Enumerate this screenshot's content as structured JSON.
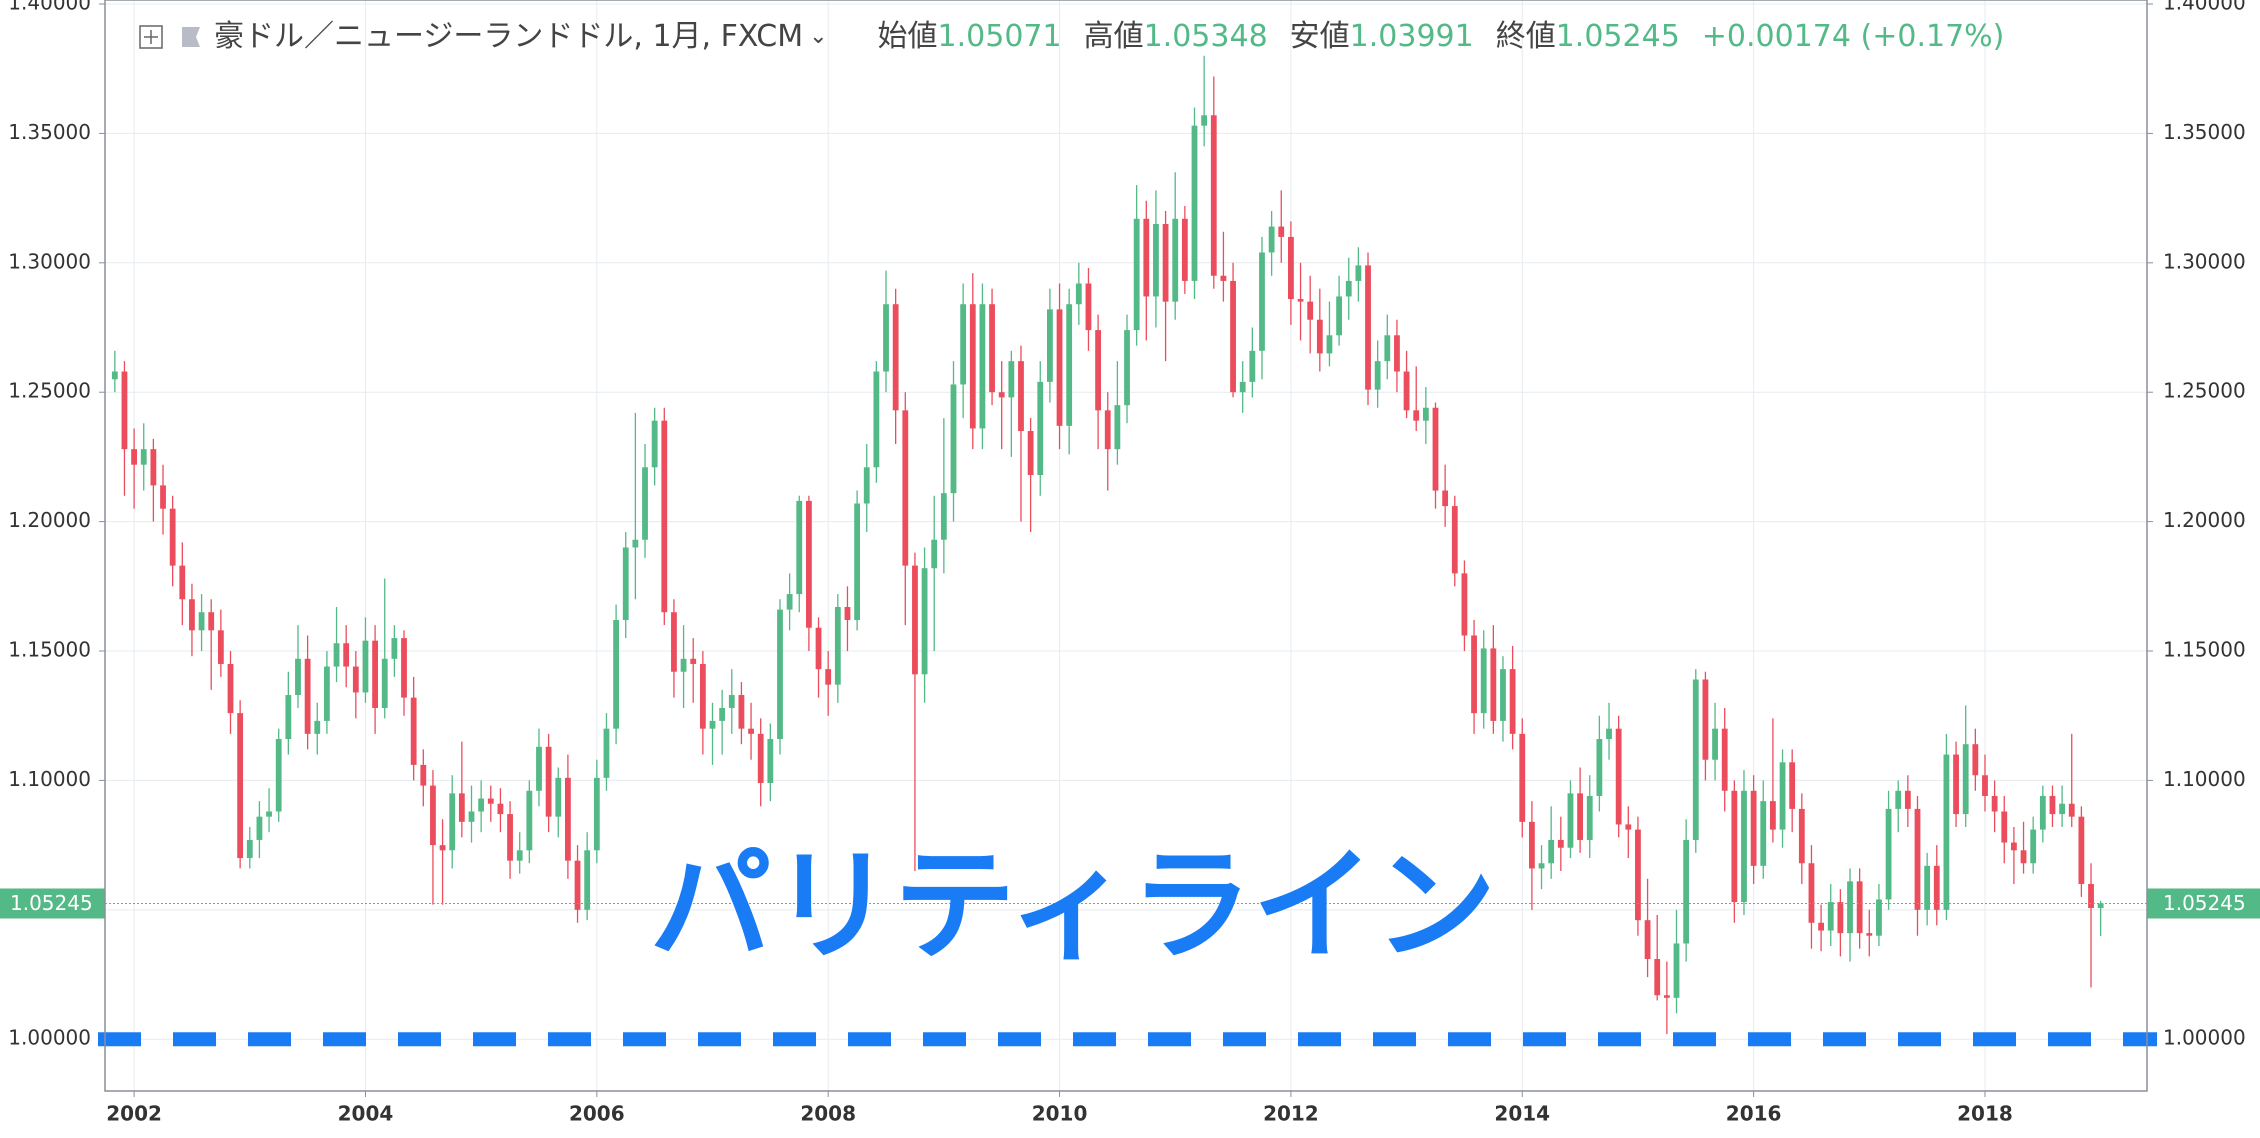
{
  "chart_data": {
    "type": "candlestick",
    "title": "豪ドル／ニュージーランドドル, 1月, FXCM",
    "ohlc_labels": [
      "始値",
      "高値",
      "安値",
      "終値"
    ],
    "change": "+0.00174 (+0.17%)",
    "up_color": "#53b987",
    "down_color": "#eb4d5c",
    "grid": true,
    "ylim": [
      0.98,
      1.4
    ],
    "yticks": [
      {
        "value": 1.0,
        "label": "1.00000"
      },
      {
        "value": 1.05,
        "label": "1.05000"
      },
      {
        "value": 1.1,
        "label": "1.10000"
      },
      {
        "value": 1.15,
        "label": "1.15000"
      },
      {
        "value": 1.2,
        "label": "1.20000"
      },
      {
        "value": 1.25,
        "label": "1.25000"
      },
      {
        "value": 1.3,
        "label": "1.30000"
      },
      {
        "value": 1.35,
        "label": "1.35000"
      },
      {
        "value": 1.4,
        "label": "1.40000"
      }
    ],
    "hline": {
      "value": 1,
      "label": "パリティライン",
      "color": "#1a7cf5"
    },
    "categories": [
      null,
      null,
      "2002",
      null,
      null,
      null,
      null,
      null,
      null,
      null,
      null,
      null,
      null,
      null,
      null,
      null,
      null,
      null,
      null,
      null,
      null,
      null,
      null,
      null,
      null,
      null,
      "2004",
      null,
      null,
      null,
      null,
      null,
      null,
      null,
      null,
      null,
      null,
      null,
      null,
      null,
      null,
      null,
      null,
      null,
      null,
      null,
      null,
      null,
      null,
      null,
      "2006",
      null,
      null,
      null,
      null,
      null,
      null,
      null,
      null,
      null,
      null,
      null,
      null,
      null,
      null,
      null,
      null,
      null,
      null,
      null,
      null,
      null,
      null,
      null,
      "2008",
      null,
      null,
      null,
      null,
      null,
      null,
      null,
      null,
      null,
      null,
      null,
      null,
      null,
      null,
      null,
      null,
      null,
      null,
      null,
      null,
      null,
      null,
      null,
      "2010",
      null,
      null,
      null,
      null,
      null,
      null,
      null,
      null,
      null,
      null,
      null,
      null,
      null,
      null,
      null,
      null,
      null,
      null,
      null,
      null,
      null,
      null,
      null,
      "2012",
      null,
      null,
      null,
      null,
      null,
      null,
      null,
      null,
      null,
      null,
      null,
      null,
      null,
      null,
      null,
      null,
      null,
      null,
      null,
      null,
      null,
      null,
      null,
      "2014",
      null,
      null,
      null,
      null,
      null,
      null,
      null,
      null,
      null,
      null,
      null,
      null,
      null,
      null,
      null,
      null,
      null,
      null,
      null,
      null,
      null,
      null,
      null,
      "2016",
      null,
      null,
      null,
      null,
      null,
      null,
      null,
      null,
      null,
      null,
      null,
      null,
      null,
      null,
      null,
      null,
      null,
      null,
      null,
      null,
      null,
      null,
      null,
      "2018",
      null,
      null,
      null,
      null,
      null,
      null,
      null,
      null,
      null,
      null,
      null,
      null
    ],
    "ohlc": [
      [
        1.255,
        1.266,
        1.25,
        1.258
      ],
      [
        1.258,
        1.262,
        1.21,
        1.228
      ],
      [
        1.228,
        1.236,
        1.205,
        1.222
      ],
      [
        1.222,
        1.238,
        1.212,
        1.228
      ],
      [
        1.228,
        1.232,
        1.2,
        1.214
      ],
      [
        1.214,
        1.222,
        1.195,
        1.205
      ],
      [
        1.205,
        1.21,
        1.175,
        1.183
      ],
      [
        1.183,
        1.192,
        1.16,
        1.17
      ],
      [
        1.17,
        1.176,
        1.148,
        1.158
      ],
      [
        1.158,
        1.172,
        1.15,
        1.165
      ],
      [
        1.165,
        1.17,
        1.135,
        1.158
      ],
      [
        1.158,
        1.166,
        1.14,
        1.145
      ],
      [
        1.145,
        1.15,
        1.118,
        1.126
      ],
      [
        1.126,
        1.131,
        1.066,
        1.07
      ],
      [
        1.07,
        1.082,
        1.066,
        1.077
      ],
      [
        1.077,
        1.092,
        1.07,
        1.086
      ],
      [
        1.086,
        1.097,
        1.08,
        1.088
      ],
      [
        1.088,
        1.12,
        1.084,
        1.116
      ],
      [
        1.116,
        1.142,
        1.11,
        1.133
      ],
      [
        1.133,
        1.16,
        1.128,
        1.147
      ],
      [
        1.147,
        1.156,
        1.112,
        1.118
      ],
      [
        1.118,
        1.13,
        1.11,
        1.123
      ],
      [
        1.123,
        1.15,
        1.118,
        1.144
      ],
      [
        1.144,
        1.167,
        1.138,
        1.153
      ],
      [
        1.153,
        1.16,
        1.136,
        1.144
      ],
      [
        1.144,
        1.15,
        1.124,
        1.134
      ],
      [
        1.134,
        1.163,
        1.13,
        1.154
      ],
      [
        1.154,
        1.16,
        1.118,
        1.128
      ],
      [
        1.128,
        1.178,
        1.124,
        1.147
      ],
      [
        1.147,
        1.16,
        1.14,
        1.155
      ],
      [
        1.155,
        1.158,
        1.125,
        1.132
      ],
      [
        1.132,
        1.14,
        1.1,
        1.106
      ],
      [
        1.106,
        1.112,
        1.09,
        1.098
      ],
      [
        1.098,
        1.104,
        1.052,
        1.075
      ],
      [
        1.075,
        1.085,
        1.052,
        1.073
      ],
      [
        1.073,
        1.102,
        1.066,
        1.095
      ],
      [
        1.095,
        1.115,
        1.078,
        1.084
      ],
      [
        1.084,
        1.098,
        1.076,
        1.088
      ],
      [
        1.088,
        1.1,
        1.08,
        1.093
      ],
      [
        1.093,
        1.098,
        1.084,
        1.091
      ],
      [
        1.091,
        1.097,
        1.08,
        1.087
      ],
      [
        1.087,
        1.092,
        1.062,
        1.069
      ],
      [
        1.069,
        1.08,
        1.064,
        1.073
      ],
      [
        1.073,
        1.1,
        1.068,
        1.096
      ],
      [
        1.096,
        1.12,
        1.09,
        1.113
      ],
      [
        1.113,
        1.118,
        1.08,
        1.086
      ],
      [
        1.086,
        1.105,
        1.078,
        1.101
      ],
      [
        1.101,
        1.11,
        1.062,
        1.069
      ],
      [
        1.069,
        1.075,
        1.045,
        1.05
      ],
      [
        1.05,
        1.08,
        1.046,
        1.073
      ],
      [
        1.073,
        1.108,
        1.068,
        1.101
      ],
      [
        1.101,
        1.126,
        1.096,
        1.12
      ],
      [
        1.12,
        1.168,
        1.114,
        1.162
      ],
      [
        1.162,
        1.196,
        1.155,
        1.19
      ],
      [
        1.19,
        1.242,
        1.17,
        1.193
      ],
      [
        1.193,
        1.23,
        1.186,
        1.221
      ],
      [
        1.221,
        1.244,
        1.214,
        1.239
      ],
      [
        1.239,
        1.244,
        1.16,
        1.165
      ],
      [
        1.165,
        1.17,
        1.132,
        1.142
      ],
      [
        1.142,
        1.16,
        1.128,
        1.147
      ],
      [
        1.147,
        1.155,
        1.13,
        1.145
      ],
      [
        1.145,
        1.15,
        1.11,
        1.12
      ],
      [
        1.12,
        1.13,
        1.106,
        1.123
      ],
      [
        1.123,
        1.135,
        1.11,
        1.128
      ],
      [
        1.128,
        1.143,
        1.118,
        1.133
      ],
      [
        1.133,
        1.138,
        1.114,
        1.12
      ],
      [
        1.12,
        1.13,
        1.108,
        1.118
      ],
      [
        1.118,
        1.124,
        1.09,
        1.099
      ],
      [
        1.099,
        1.122,
        1.092,
        1.116
      ],
      [
        1.116,
        1.17,
        1.11,
        1.166
      ],
      [
        1.166,
        1.18,
        1.158,
        1.172
      ],
      [
        1.172,
        1.21,
        1.165,
        1.208
      ],
      [
        1.208,
        1.21,
        1.15,
        1.159
      ],
      [
        1.159,
        1.163,
        1.132,
        1.143
      ],
      [
        1.143,
        1.15,
        1.125,
        1.137
      ],
      [
        1.137,
        1.172,
        1.13,
        1.167
      ],
      [
        1.167,
        1.175,
        1.15,
        1.162
      ],
      [
        1.162,
        1.212,
        1.158,
        1.207
      ],
      [
        1.207,
        1.23,
        1.196,
        1.221
      ],
      [
        1.221,
        1.262,
        1.215,
        1.258
      ],
      [
        1.258,
        1.297,
        1.25,
        1.284
      ],
      [
        1.284,
        1.29,
        1.23,
        1.243
      ],
      [
        1.243,
        1.25,
        1.16,
        1.183
      ],
      [
        1.183,
        1.188,
        1.065,
        1.141
      ],
      [
        1.141,
        1.19,
        1.13,
        1.182
      ],
      [
        1.182,
        1.21,
        1.15,
        1.193
      ],
      [
        1.193,
        1.24,
        1.18,
        1.211
      ],
      [
        1.211,
        1.262,
        1.2,
        1.253
      ],
      [
        1.253,
        1.292,
        1.24,
        1.284
      ],
      [
        1.284,
        1.296,
        1.228,
        1.236
      ],
      [
        1.236,
        1.292,
        1.228,
        1.284
      ],
      [
        1.284,
        1.29,
        1.245,
        1.25
      ],
      [
        1.25,
        1.262,
        1.228,
        1.248
      ],
      [
        1.248,
        1.266,
        1.225,
        1.262
      ],
      [
        1.262,
        1.268,
        1.2,
        1.235
      ],
      [
        1.235,
        1.24,
        1.196,
        1.218
      ],
      [
        1.218,
        1.262,
        1.21,
        1.254
      ],
      [
        1.254,
        1.29,
        1.246,
        1.282
      ],
      [
        1.282,
        1.292,
        1.228,
        1.237
      ],
      [
        1.237,
        1.29,
        1.226,
        1.284
      ],
      [
        1.284,
        1.3,
        1.276,
        1.292
      ],
      [
        1.292,
        1.298,
        1.266,
        1.274
      ],
      [
        1.274,
        1.28,
        1.228,
        1.243
      ],
      [
        1.243,
        1.25,
        1.212,
        1.228
      ],
      [
        1.228,
        1.262,
        1.222,
        1.245
      ],
      [
        1.245,
        1.28,
        1.238,
        1.274
      ],
      [
        1.274,
        1.33,
        1.268,
        1.317
      ],
      [
        1.317,
        1.324,
        1.27,
        1.287
      ],
      [
        1.287,
        1.328,
        1.275,
        1.315
      ],
      [
        1.315,
        1.32,
        1.262,
        1.285
      ],
      [
        1.285,
        1.335,
        1.278,
        1.317
      ],
      [
        1.317,
        1.322,
        1.288,
        1.293
      ],
      [
        1.293,
        1.36,
        1.286,
        1.353
      ],
      [
        1.353,
        1.38,
        1.345,
        1.357
      ],
      [
        1.357,
        1.372,
        1.29,
        1.295
      ],
      [
        1.295,
        1.312,
        1.285,
        1.293
      ],
      [
        1.293,
        1.3,
        1.248,
        1.25
      ],
      [
        1.25,
        1.262,
        1.242,
        1.254
      ],
      [
        1.254,
        1.275,
        1.248,
        1.266
      ],
      [
        1.266,
        1.31,
        1.255,
        1.304
      ],
      [
        1.304,
        1.32,
        1.295,
        1.314
      ],
      [
        1.314,
        1.328,
        1.3,
        1.31
      ],
      [
        1.31,
        1.316,
        1.276,
        1.286
      ],
      [
        1.286,
        1.3,
        1.27,
        1.285
      ],
      [
        1.285,
        1.295,
        1.265,
        1.278
      ],
      [
        1.278,
        1.29,
        1.258,
        1.265
      ],
      [
        1.265,
        1.285,
        1.26,
        1.272
      ],
      [
        1.272,
        1.295,
        1.268,
        1.287
      ],
      [
        1.287,
        1.302,
        1.278,
        1.293
      ],
      [
        1.293,
        1.306,
        1.285,
        1.299
      ],
      [
        1.299,
        1.304,
        1.245,
        1.251
      ],
      [
        1.251,
        1.27,
        1.244,
        1.262
      ],
      [
        1.262,
        1.28,
        1.255,
        1.272
      ],
      [
        1.272,
        1.278,
        1.25,
        1.258
      ],
      [
        1.258,
        1.266,
        1.24,
        1.243
      ],
      [
        1.243,
        1.26,
        1.235,
        1.239
      ],
      [
        1.239,
        1.252,
        1.23,
        1.244
      ],
      [
        1.244,
        1.246,
        1.205,
        1.212
      ],
      [
        1.212,
        1.222,
        1.198,
        1.206
      ],
      [
        1.206,
        1.21,
        1.175,
        1.18
      ],
      [
        1.18,
        1.185,
        1.15,
        1.156
      ],
      [
        1.156,
        1.162,
        1.118,
        1.126
      ],
      [
        1.126,
        1.158,
        1.12,
        1.151
      ],
      [
        1.151,
        1.16,
        1.118,
        1.123
      ],
      [
        1.123,
        1.148,
        1.115,
        1.143
      ],
      [
        1.143,
        1.152,
        1.112,
        1.118
      ],
      [
        1.118,
        1.124,
        1.078,
        1.084
      ],
      [
        1.084,
        1.092,
        1.05,
        1.066
      ],
      [
        1.066,
        1.075,
        1.058,
        1.068
      ],
      [
        1.068,
        1.09,
        1.062,
        1.077
      ],
      [
        1.077,
        1.086,
        1.065,
        1.074
      ],
      [
        1.074,
        1.1,
        1.07,
        1.095
      ],
      [
        1.095,
        1.105,
        1.072,
        1.077
      ],
      [
        1.077,
        1.102,
        1.07,
        1.094
      ],
      [
        1.094,
        1.125,
        1.088,
        1.116
      ],
      [
        1.116,
        1.13,
        1.108,
        1.12
      ],
      [
        1.12,
        1.125,
        1.078,
        1.083
      ],
      [
        1.083,
        1.09,
        1.07,
        1.081
      ],
      [
        1.081,
        1.086,
        1.04,
        1.046
      ],
      [
        1.046,
        1.062,
        1.024,
        1.031
      ],
      [
        1.031,
        1.048,
        1.015,
        1.017
      ],
      [
        1.017,
        1.03,
        1.002,
        1.016
      ],
      [
        1.016,
        1.05,
        1.01,
        1.037
      ],
      [
        1.037,
        1.085,
        1.03,
        1.077
      ],
      [
        1.077,
        1.143,
        1.072,
        1.139
      ],
      [
        1.139,
        1.142,
        1.1,
        1.108
      ],
      [
        1.108,
        1.13,
        1.1,
        1.12
      ],
      [
        1.12,
        1.128,
        1.088,
        1.096
      ],
      [
        1.096,
        1.1,
        1.045,
        1.053
      ],
      [
        1.053,
        1.104,
        1.048,
        1.096
      ],
      [
        1.096,
        1.102,
        1.06,
        1.067
      ],
      [
        1.067,
        1.1,
        1.062,
        1.092
      ],
      [
        1.092,
        1.124,
        1.076,
        1.081
      ],
      [
        1.081,
        1.112,
        1.074,
        1.107
      ],
      [
        1.107,
        1.112,
        1.08,
        1.089
      ],
      [
        1.089,
        1.095,
        1.06,
        1.068
      ],
      [
        1.068,
        1.075,
        1.035,
        1.045
      ],
      [
        1.045,
        1.052,
        1.034,
        1.042
      ],
      [
        1.042,
        1.06,
        1.036,
        1.053
      ],
      [
        1.053,
        1.058,
        1.032,
        1.041
      ],
      [
        1.041,
        1.066,
        1.03,
        1.061
      ],
      [
        1.061,
        1.066,
        1.035,
        1.041
      ],
      [
        1.041,
        1.05,
        1.032,
        1.04
      ],
      [
        1.04,
        1.06,
        1.036,
        1.054
      ],
      [
        1.054,
        1.096,
        1.05,
        1.089
      ],
      [
        1.089,
        1.1,
        1.08,
        1.096
      ],
      [
        1.096,
        1.102,
        1.082,
        1.089
      ],
      [
        1.089,
        1.094,
        1.04,
        1.05
      ],
      [
        1.05,
        1.072,
        1.044,
        1.067
      ],
      [
        1.067,
        1.075,
        1.044,
        1.05
      ],
      [
        1.05,
        1.118,
        1.046,
        1.11
      ],
      [
        1.11,
        1.115,
        1.082,
        1.087
      ],
      [
        1.087,
        1.129,
        1.082,
        1.114
      ],
      [
        1.114,
        1.12,
        1.096,
        1.102
      ],
      [
        1.102,
        1.11,
        1.088,
        1.094
      ],
      [
        1.094,
        1.1,
        1.08,
        1.088
      ],
      [
        1.088,
        1.094,
        1.068,
        1.076
      ],
      [
        1.076,
        1.082,
        1.06,
        1.073
      ],
      [
        1.073,
        1.084,
        1.064,
        1.068
      ],
      [
        1.068,
        1.086,
        1.064,
        1.081
      ],
      [
        1.081,
        1.098,
        1.076,
        1.094
      ],
      [
        1.094,
        1.098,
        1.082,
        1.087
      ],
      [
        1.087,
        1.098,
        1.082,
        1.091
      ],
      [
        1.091,
        1.118,
        1.082,
        1.086
      ],
      [
        1.086,
        1.09,
        1.055,
        1.06
      ],
      [
        1.06,
        1.068,
        1.02,
        1.05071
      ],
      [
        1.05071,
        1.05348,
        1.03991,
        1.05245
      ]
    ]
  }
}
